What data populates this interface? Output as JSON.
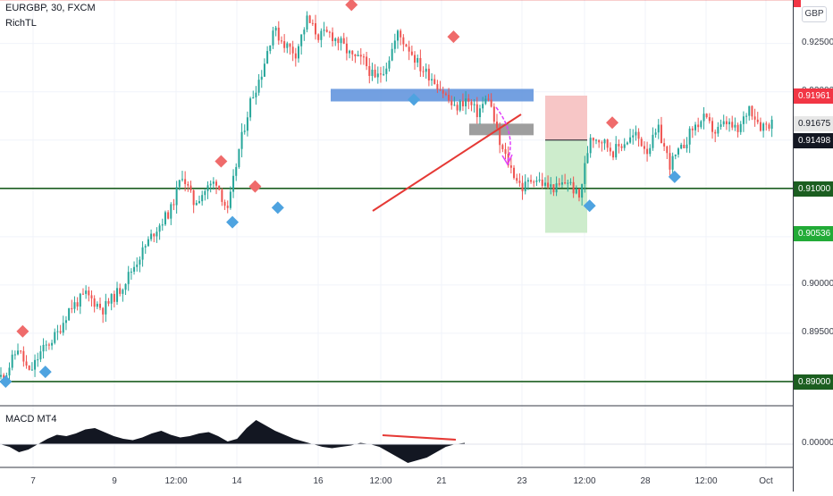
{
  "header": {
    "symbol": "EURGBP, 30, FXCM",
    "indicator": "RichTL",
    "currency_badge": "GBP"
  },
  "macd": {
    "label": "MACD MT4",
    "tick": "0.00000"
  },
  "colors": {
    "up": "#26a69a",
    "down": "#ef5350",
    "resistance": "#e53935",
    "support": "#1b5e20",
    "zone": "#5a8fdc",
    "consolidation": "#9e9e9e",
    "stop": "#f7c6c6",
    "target": "#cdeccc",
    "arrow": "#e040fb",
    "trend": "#e53935"
  },
  "chart_data": {
    "type": "candlestick",
    "title": "EURGBP, 30, FXCM",
    "x_ticks": [
      "7",
      "9",
      "12:00",
      "14",
      "16",
      "12:00",
      "21",
      "23",
      "12:00",
      "28",
      "12:00",
      "Oct"
    ],
    "y_ticks": [
      0.925,
      0.92,
      0.915,
      0.91,
      0.905,
      0.9,
      0.895,
      0.89
    ],
    "y_tick_labels": [
      "0.92500",
      "0.92000",
      "0.91500",
      "0.91000",
      "0.90500",
      "0.90000",
      "0.89500",
      "0.89000"
    ],
    "ylim": [
      0.8875,
      0.9295
    ],
    "price_path": [
      [
        0,
        0.8905
      ],
      [
        1,
        0.891
      ],
      [
        3,
        0.8935
      ],
      [
        5,
        0.8908
      ],
      [
        7,
        0.893
      ],
      [
        10,
        0.895
      ],
      [
        12,
        0.8975
      ],
      [
        15,
        0.899
      ],
      [
        18,
        0.8975
      ],
      [
        21,
        0.8995
      ],
      [
        24,
        0.9025
      ],
      [
        27,
        0.9055
      ],
      [
        30,
        0.9078
      ],
      [
        32,
        0.9115
      ],
      [
        34,
        0.9085
      ],
      [
        36,
        0.9098
      ],
      [
        38,
        0.9108
      ],
      [
        40,
        0.9075
      ],
      [
        42,
        0.914
      ],
      [
        44,
        0.919
      ],
      [
        46,
        0.922
      ],
      [
        48,
        0.9265
      ],
      [
        50,
        0.925
      ],
      [
        52,
        0.924
      ],
      [
        54,
        0.9275
      ],
      [
        56,
        0.9258
      ],
      [
        58,
        0.926
      ],
      [
        60,
        0.925
      ],
      [
        62,
        0.9235
      ],
      [
        64,
        0.9232
      ],
      [
        66,
        0.9212
      ],
      [
        68,
        0.9228
      ],
      [
        70,
        0.926
      ],
      [
        72,
        0.9245
      ],
      [
        74,
        0.9225
      ],
      [
        76,
        0.9215
      ],
      [
        78,
        0.92
      ],
      [
        80,
        0.9182
      ],
      [
        82,
        0.9192
      ],
      [
        84,
        0.9178
      ],
      [
        86,
        0.9195
      ],
      [
        88,
        0.9145
      ],
      [
        90,
        0.912
      ],
      [
        92,
        0.91
      ],
      [
        94,
        0.9112
      ],
      [
        96,
        0.9103
      ],
      [
        98,
        0.91
      ],
      [
        100,
        0.9108
      ],
      [
        102,
        0.909
      ],
      [
        104,
        0.9155
      ],
      [
        106,
        0.915
      ],
      [
        108,
        0.9138
      ],
      [
        110,
        0.9148
      ],
      [
        112,
        0.9155
      ],
      [
        114,
        0.914
      ],
      [
        116,
        0.916
      ],
      [
        118,
        0.9125
      ],
      [
        120,
        0.914
      ],
      [
        122,
        0.9162
      ],
      [
        124,
        0.9172
      ],
      [
        126,
        0.9158
      ],
      [
        128,
        0.9168
      ],
      [
        130,
        0.9158
      ],
      [
        132,
        0.9185
      ],
      [
        134,
        0.9165
      ],
      [
        136,
        0.9168
      ]
    ],
    "lines": [
      {
        "name": "",
        "value": 0.92955,
        "color": "#e53935",
        "style": "solid"
      },
      {
        "name": "",
        "value": 0.91,
        "color": "#1b5e20",
        "style": "solid"
      },
      {
        "name": "",
        "value": 0.89,
        "color": "#1b5e20",
        "style": "solid"
      }
    ],
    "zones": [
      {
        "kind": "resistance-zone",
        "y_top": 0.9203,
        "y_bottom": 0.919
      },
      {
        "kind": "consolidation",
        "y_top": 0.9167,
        "y_bottom": 0.9155
      },
      {
        "kind": "stop-loss",
        "y_top": 0.9196,
        "y_bottom": 0.915
      },
      {
        "kind": "take-profit",
        "y_top": 0.915,
        "y_bottom": 0.9054
      }
    ],
    "highs": [
      [
        4,
        0.8952
      ],
      [
        39,
        0.9128
      ],
      [
        45,
        0.9102
      ],
      [
        62,
        0.929
      ],
      [
        80,
        0.9257
      ],
      [
        108,
        0.9168
      ]
    ],
    "lows": [
      [
        1,
        0.89
      ],
      [
        8,
        0.891
      ],
      [
        41,
        0.9065
      ],
      [
        49,
        0.908
      ],
      [
        73,
        0.9192
      ],
      [
        104,
        0.9082
      ],
      [
        119,
        0.9112
      ]
    ],
    "price_labels": [
      {
        "label": "0.91961",
        "value": 0.91961,
        "color": "#f23645"
      },
      {
        "label": "0.91675",
        "value": 0.91675,
        "color": "#e7e7e7"
      },
      {
        "label": "0.91498",
        "value": 0.91498,
        "color": "#131722"
      },
      {
        "label": "0.91000",
        "value": 0.91,
        "color": "#1b5e20"
      },
      {
        "label": "0.90536",
        "value": 0.90536,
        "color": "#22ab37"
      },
      {
        "label": "0.89000",
        "value": 0.89,
        "color": "#1b5e20"
      }
    ],
    "macd_values": [
      0,
      -0.1,
      -0.3,
      -0.2,
      0,
      0.2,
      0.35,
      0.3,
      0.4,
      0.55,
      0.6,
      0.45,
      0.3,
      0.2,
      0.15,
      0.25,
      0.4,
      0.5,
      0.35,
      0.25,
      0.3,
      0.4,
      0.45,
      0.3,
      0.1,
      0.2,
      0.6,
      0.9,
      0.7,
      0.5,
      0.35,
      0.2,
      0.1,
      0.0,
      -0.1,
      -0.15,
      -0.1,
      -0.05,
      0.05,
      0.0,
      -0.1,
      -0.3,
      -0.5,
      -0.7,
      -0.6,
      -0.5,
      -0.3,
      -0.1,
      0.0,
      0.05
    ]
  }
}
